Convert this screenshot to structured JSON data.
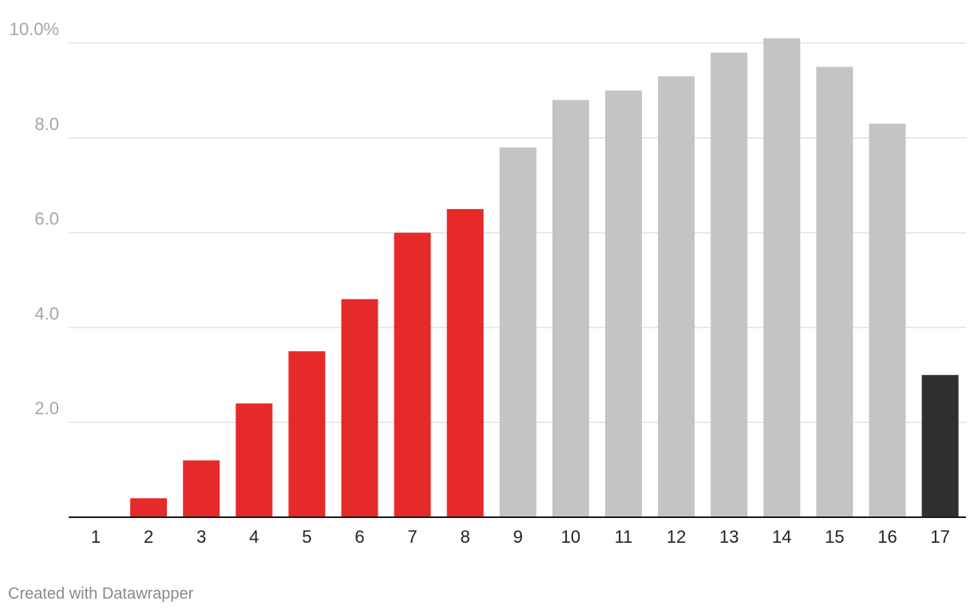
{
  "chart_data": {
    "type": "bar",
    "title": "",
    "xlabel": "",
    "ylabel": "",
    "categories": [
      "1",
      "2",
      "3",
      "4",
      "5",
      "6",
      "7",
      "8",
      "9",
      "10",
      "11",
      "12",
      "13",
      "14",
      "15",
      "16",
      "17"
    ],
    "values": [
      0,
      0.4,
      1.2,
      2.4,
      3.5,
      4.6,
      6.0,
      6.5,
      7.8,
      8.8,
      9.0,
      9.3,
      9.8,
      10.1,
      9.5,
      8.3,
      3.0
    ],
    "bar_colors": [
      "#e62a2a",
      "#e62a2a",
      "#e62a2a",
      "#e62a2a",
      "#e62a2a",
      "#e62a2a",
      "#e62a2a",
      "#e62a2a",
      "#c4c4c4",
      "#c4c4c4",
      "#c4c4c4",
      "#c4c4c4",
      "#c4c4c4",
      "#c4c4c4",
      "#c4c4c4",
      "#c4c4c4",
      "#2f2f2f"
    ],
    "ylim": [
      0,
      10
    ],
    "yticks": [
      {
        "value": 2,
        "label": "2.0"
      },
      {
        "value": 4,
        "label": "4.0"
      },
      {
        "value": 6,
        "label": "6.0"
      },
      {
        "value": 8,
        "label": "8.0"
      },
      {
        "value": 10,
        "label": "10.0%"
      }
    ],
    "grid": true,
    "legend": "none"
  },
  "colors": {
    "highlight": "#e62a2a",
    "neutral": "#c4c4c4",
    "current": "#2f2f2f",
    "grid": "#e2e2e2",
    "axis_text": "#a6a6a6"
  },
  "footer": {
    "credit": "Created with Datawrapper"
  }
}
